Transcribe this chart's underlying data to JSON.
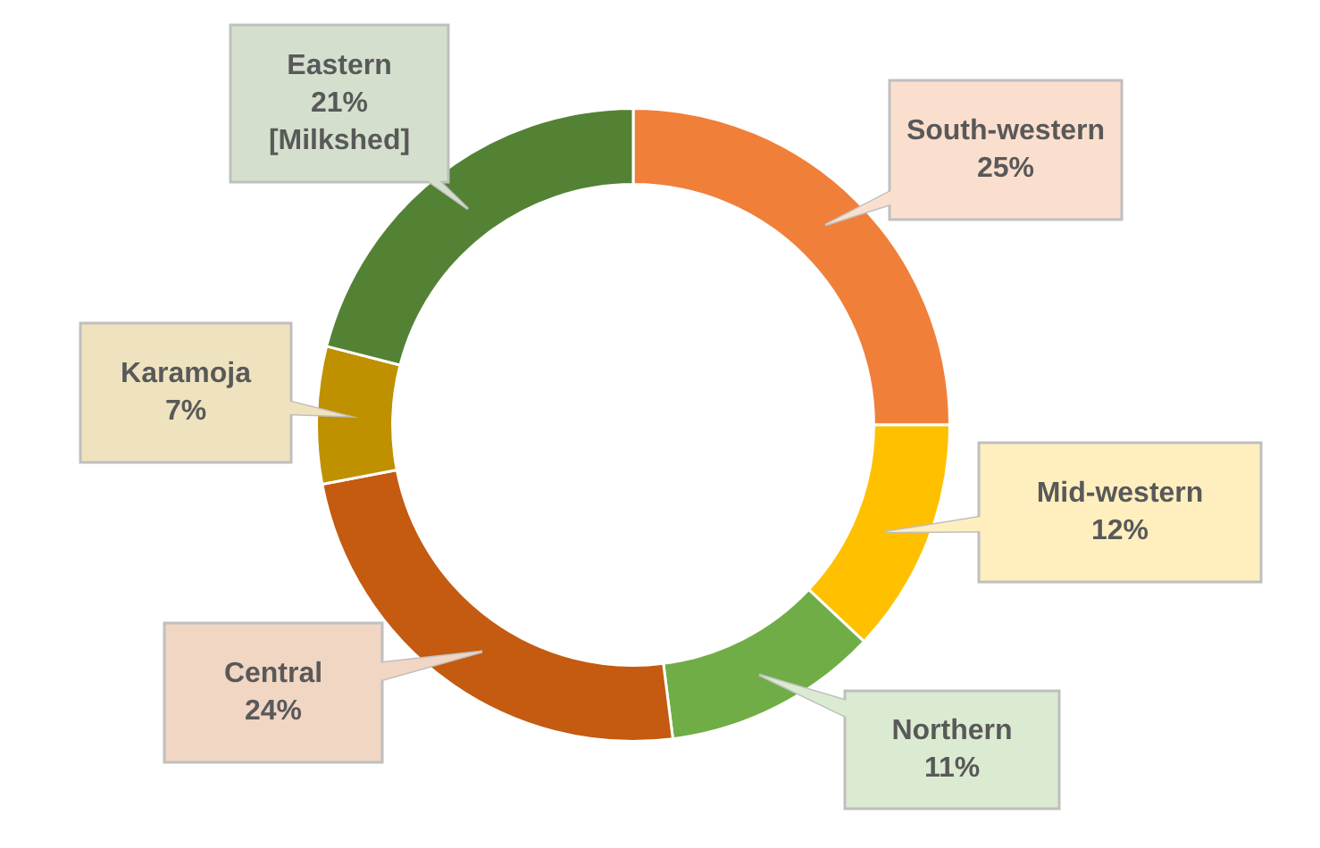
{
  "chart_data": {
    "type": "donut",
    "categories": [
      "South-western",
      "Mid-western",
      "Northern",
      "Central",
      "Karamoja",
      "Eastern"
    ],
    "values": [
      25,
      12,
      11,
      24,
      7,
      21
    ],
    "value_labels": [
      "25%",
      "12%",
      "11%",
      "24%",
      "7%",
      "21% [Milkshed]"
    ],
    "colors": [
      "#f07f3a",
      "#ffc000",
      "#70ad47",
      "#c55a11",
      "#bf9000",
      "#548235"
    ],
    "legend": false
  }
}
